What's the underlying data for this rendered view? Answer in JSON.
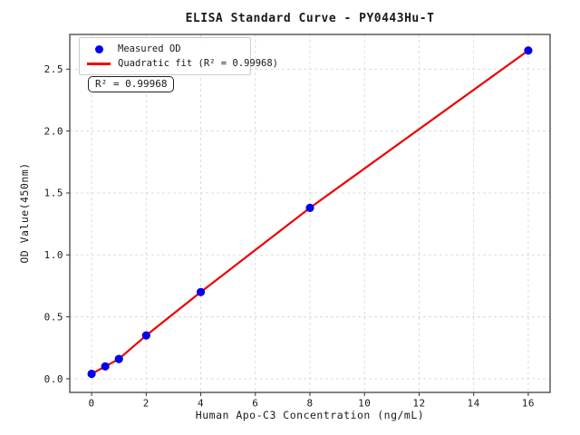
{
  "chart_data": {
    "type": "scatter",
    "title": "ELISA Standard Curve - PY0443Hu-T",
    "xlabel": "Human Apo-C3 Concentration (ng/mL)",
    "ylabel": "OD Value(450nm)",
    "x": [
      0,
      0.5,
      1,
      2,
      4,
      8,
      16
    ],
    "series": [
      {
        "name": "Measured OD",
        "kind": "scatter",
        "marker": "dot",
        "color": "#0000ee",
        "values": [
          0.04,
          0.1,
          0.16,
          0.35,
          0.7,
          1.38,
          2.65
        ]
      },
      {
        "name": "Quadratic fit (R² = 0.99968)",
        "kind": "line",
        "marker": "line",
        "color": "#ee0000",
        "values": [
          0.04,
          0.1,
          0.16,
          0.35,
          0.7,
          1.38,
          2.65
        ]
      }
    ],
    "r_squared_annotation": "R² = 0.99968",
    "xlim": [
      -0.8,
      16.8
    ],
    "ylim": [
      -0.11,
      2.78
    ],
    "xticks": [
      0,
      2,
      4,
      6,
      8,
      10,
      12,
      14,
      16
    ],
    "xtick_labels": [
      "0",
      "2",
      "4",
      "6",
      "8",
      "10",
      "12",
      "14",
      "16"
    ],
    "yticks": [
      0,
      0.5,
      1.0,
      1.5,
      2.0,
      2.5
    ],
    "ytick_labels": [
      "0.0",
      "0.5",
      "1.0",
      "1.5",
      "2.0",
      "2.5"
    ],
    "grid": true,
    "grid_style": "dashed",
    "legend_position": "upper left",
    "colors": {
      "point": "#0000ee",
      "fit_line": "#ee0000",
      "grid": "#d9d9d9",
      "spine": "#333333",
      "tick": "#333333",
      "text": "#1a1a1a",
      "legend_border": "#cccccc",
      "annotation_border": "#222222"
    }
  }
}
